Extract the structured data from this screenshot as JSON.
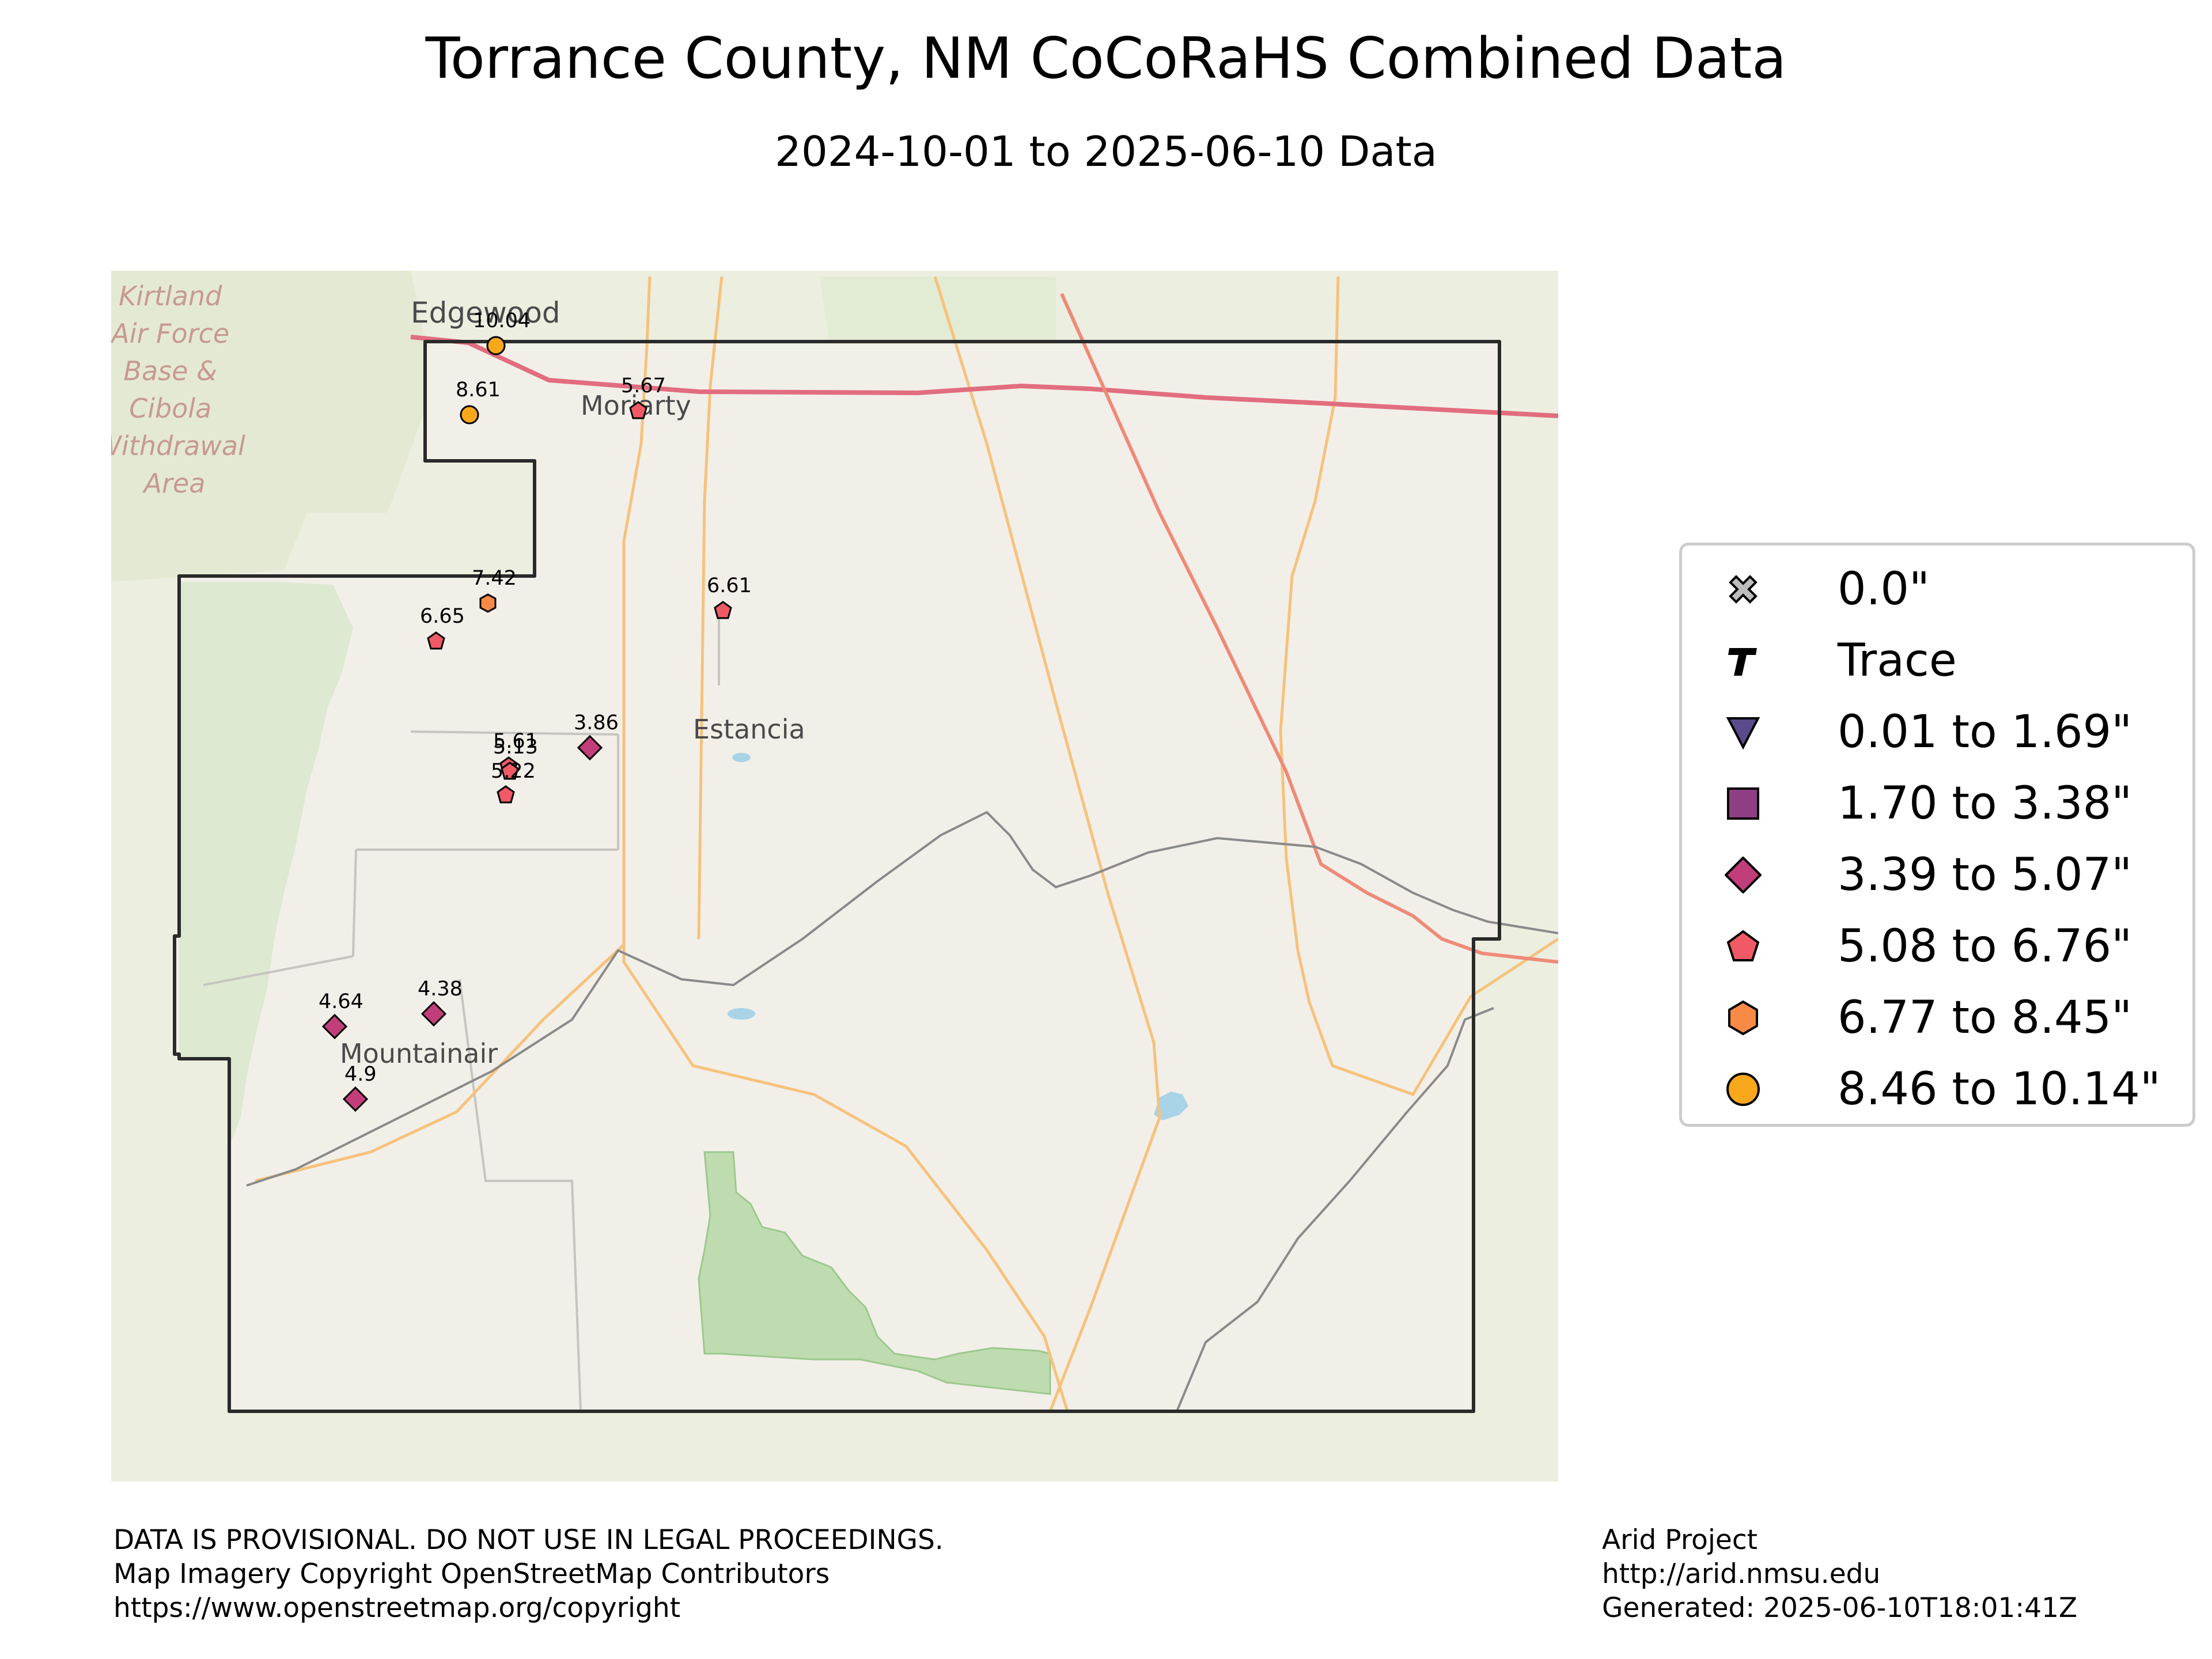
{
  "title": "Torrance County, NM CoCoRaHS Combined Data",
  "subtitle": "2024-10-01 to 2025-06-10 Data",
  "colors": {
    "zero": "#bdbdbd",
    "trace": "#000000",
    "bin1": "#5b4a8c",
    "bin2": "#8e3f84",
    "bin3": "#c23e7a",
    "bin4": "#ef5a66",
    "bin5": "#f98a45",
    "bin6": "#f8a81a",
    "county_border": "#2a2a2a",
    "map_bg": "#f1efe9",
    "outside_bg": "#eceee0",
    "forest": "#bfdcb0",
    "highway": "#e16d7e",
    "road": "#f6c27c",
    "rail": "#8a8a8a",
    "water": "#a9d3e6"
  },
  "map": {
    "place_labels": {
      "edgewood": "Edgewood",
      "moriarty": "Moriarty",
      "estancia": "Estancia",
      "mountainair": "Mountainair"
    },
    "kirtland_lines": [
      "Kirtland",
      "Air Force",
      "Base &",
      "Cibola",
      "Withdrawal",
      "Area"
    ],
    "stations": [
      {
        "label": "10.04",
        "symbol": "circle",
        "bin": "bin6"
      },
      {
        "label": "8.61",
        "symbol": "circle",
        "bin": "bin6"
      },
      {
        "label": "5.67",
        "symbol": "pentagon",
        "bin": "bin4"
      },
      {
        "label": "7.42",
        "symbol": "hexagon",
        "bin": "bin5"
      },
      {
        "label": "6.61",
        "symbol": "pentagon",
        "bin": "bin4"
      },
      {
        "label": "6.65",
        "symbol": "pentagon",
        "bin": "bin4"
      },
      {
        "label": "3.86",
        "symbol": "diamond",
        "bin": "bin3"
      },
      {
        "label": "5.61",
        "symbol": "pentagon",
        "bin": "bin4"
      },
      {
        "label": "5.13",
        "symbol": "pentagon",
        "bin": "bin4"
      },
      {
        "label": "5.22",
        "symbol": "pentagon",
        "bin": "bin4"
      },
      {
        "label": "4.64",
        "symbol": "diamond",
        "bin": "bin3"
      },
      {
        "label": "4.38",
        "symbol": "diamond",
        "bin": "bin3"
      },
      {
        "label": "4.9",
        "symbol": "diamond",
        "bin": "bin3"
      }
    ]
  },
  "legend": {
    "items": [
      {
        "label": "0.0\"",
        "icon": "x-icon"
      },
      {
        "label": "Trace",
        "icon": "trace-t-icon"
      },
      {
        "label": "0.01 to 1.69\"",
        "icon": "triangle-down-icon"
      },
      {
        "label": "1.70 to 3.38\"",
        "icon": "square-icon"
      },
      {
        "label": "3.39 to 5.07\"",
        "icon": "diamond-icon"
      },
      {
        "label": "5.08 to 6.76\"",
        "icon": "pentagon-icon"
      },
      {
        "label": "6.77 to 8.45\"",
        "icon": "hexagon-icon"
      },
      {
        "label": "8.46 to 10.14\"",
        "icon": "circle-icon"
      }
    ]
  },
  "footer": {
    "left_line1": "DATA IS PROVISIONAL. DO NOT USE IN LEGAL PROCEEDINGS.",
    "left_line2": "Map Imagery Copyright OpenStreetMap Contributors",
    "left_line3": "https://www.openstreetmap.org/copyright",
    "right_line1": "Arid Project",
    "right_line2": "http://arid.nmsu.edu",
    "right_line3": "Generated: 2025-06-10T18:01:41Z"
  }
}
